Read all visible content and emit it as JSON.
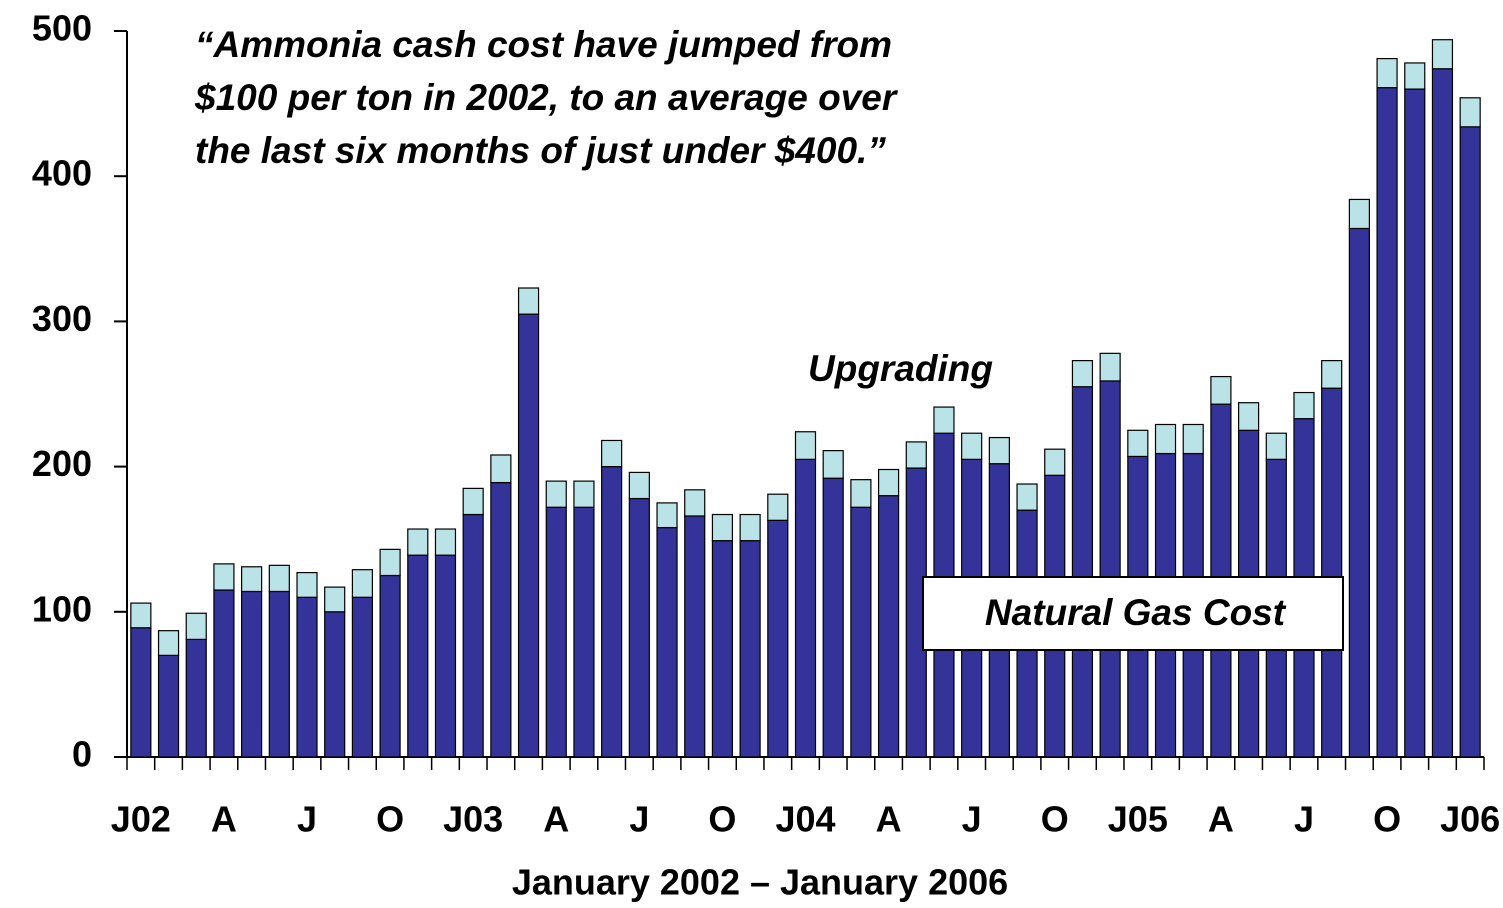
{
  "chart_data": {
    "type": "stacked_bar",
    "annotation_lines": [
      "“Ammonia cash cost have jumped from",
      "$100 per ton in 2002, to an average over",
      "the last six months of just under $400.”"
    ],
    "x_label": "January 2002 – January 2006",
    "categories": [
      "J02",
      null,
      null,
      "A",
      null,
      null,
      "J",
      null,
      null,
      "O",
      null,
      null,
      "J03",
      null,
      null,
      "A",
      null,
      null,
      "J",
      null,
      null,
      "O",
      null,
      null,
      "J04",
      null,
      null,
      "A",
      null,
      null,
      "J",
      null,
      null,
      "O",
      null,
      null,
      "J05",
      null,
      null,
      "A",
      null,
      null,
      "J",
      null,
      null,
      "O",
      null,
      null,
      "J06"
    ],
    "series": [
      {
        "name": "Natural Gas Cost",
        "color": "#333399",
        "values": [
          89,
          70,
          81,
          115,
          114,
          114,
          110,
          100,
          110,
          125,
          139,
          139,
          167,
          189,
          305,
          172,
          172,
          200,
          178,
          158,
          166,
          149,
          149,
          163,
          205,
          192,
          172,
          180,
          199,
          223,
          205,
          202,
          170,
          194,
          255,
          259,
          207,
          209,
          209,
          243,
          225,
          205,
          233,
          254,
          364,
          461,
          460,
          474,
          434
        ]
      },
      {
        "name": "Upgrading",
        "color": "#b9e3e6",
        "values": [
          17,
          17,
          18,
          18,
          17,
          18,
          17,
          17,
          19,
          18,
          18,
          18,
          18,
          19,
          18,
          18,
          18,
          18,
          18,
          17,
          18,
          18,
          18,
          18,
          19,
          19,
          19,
          18,
          18,
          18,
          18,
          18,
          18,
          18,
          18,
          19,
          18,
          20,
          20,
          19,
          19,
          18,
          18,
          19,
          20,
          20,
          18,
          20,
          20
        ]
      }
    ],
    "ylim": [
      0,
      500
    ],
    "yticks": [
      0,
      100,
      200,
      300,
      400,
      500
    ]
  }
}
